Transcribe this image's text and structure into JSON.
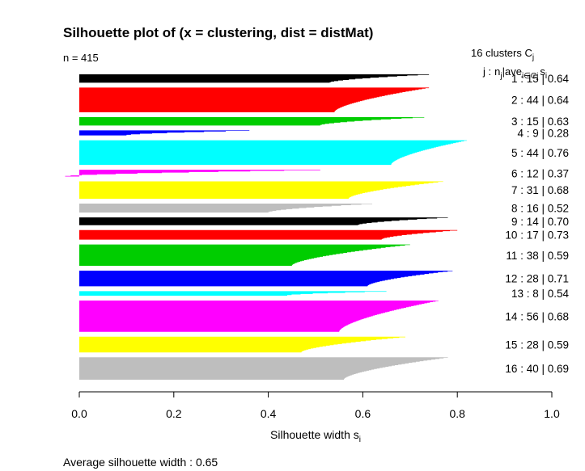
{
  "chart_data": {
    "type": "bar",
    "title": "Silhouette plot of (x = clustering, dist = distMat)",
    "n_label": "n = 415",
    "header": {
      "clusters_prefix": "16  clusters  C",
      "clusters_sub": "j",
      "col_j": "j :",
      "col_nj": "n",
      "col_nj_sub": "j",
      "col_sep": "|",
      "col_ave": "ave",
      "col_ave_sub": "i∈Cj",
      "col_s": "s",
      "col_s_sub": "i"
    },
    "xlabel_main": "Silhouette width s",
    "xlabel_sub": "i",
    "xlim": [
      0,
      1
    ],
    "x_ticks": [
      "0.0",
      "0.2",
      "0.4",
      "0.6",
      "0.8",
      "1.0"
    ],
    "x_tick_values": [
      0,
      0.2,
      0.4,
      0.6,
      0.8,
      1.0
    ],
    "footer_label": "Average silhouette width :  0.65",
    "bar_orientation": "horizontal",
    "grid": false,
    "clusters": [
      {
        "j": 1,
        "n": 15,
        "ave": "0.64",
        "color": "#000000",
        "max": 0.74,
        "min": 0.53,
        "label_text": "1 :  15  |  0.64"
      },
      {
        "j": 2,
        "n": 44,
        "ave": "0.64",
        "color": "#ff0000",
        "max": 0.74,
        "min": 0.54,
        "label_text": "2 :  44  |  0.64"
      },
      {
        "j": 3,
        "n": 15,
        "ave": "0.63",
        "color": "#00cd00",
        "max": 0.73,
        "min": 0.51,
        "label_text": "3 :  15  |  0.63"
      },
      {
        "j": 4,
        "n": 9,
        "ave": "0.28",
        "color": "#0000ff",
        "max": 0.36,
        "min": 0.1,
        "label_text": "4 :   9  |  0.28"
      },
      {
        "j": 5,
        "n": 44,
        "ave": "0.76",
        "color": "#00ffff",
        "max": 0.82,
        "min": 0.66,
        "label_text": "5 :  44  |  0.76"
      },
      {
        "j": 6,
        "n": 12,
        "ave": "0.37",
        "color": "#ff00ff",
        "max": 0.51,
        "min": -0.03,
        "label_text": "6 :  12  |  0.37"
      },
      {
        "j": 7,
        "n": 31,
        "ave": "0.68",
        "color": "#ffff00",
        "max": 0.77,
        "min": 0.57,
        "label_text": "7 :  31  |  0.68"
      },
      {
        "j": 8,
        "n": 16,
        "ave": "0.52",
        "color": "#bebebe",
        "max": 0.62,
        "min": 0.4,
        "label_text": "8 :  16  |  0.52"
      },
      {
        "j": 9,
        "n": 14,
        "ave": "0.70",
        "color": "#000000",
        "max": 0.78,
        "min": 0.59,
        "label_text": "9 :  14  |  0.70"
      },
      {
        "j": 10,
        "n": 17,
        "ave": "0.73",
        "color": "#ff0000",
        "max": 0.8,
        "min": 0.64,
        "label_text": "10 :  17  |  0.73"
      },
      {
        "j": 11,
        "n": 38,
        "ave": "0.59",
        "color": "#00cd00",
        "max": 0.7,
        "min": 0.45,
        "label_text": "11 :  38  |  0.59"
      },
      {
        "j": 12,
        "n": 28,
        "ave": "0.71",
        "color": "#0000ff",
        "max": 0.79,
        "min": 0.61,
        "label_text": "12 :  28  |  0.71"
      },
      {
        "j": 13,
        "n": 8,
        "ave": "0.54",
        "color": "#00ffff",
        "max": 0.65,
        "min": 0.44,
        "label_text": "13 :   8  |  0.54"
      },
      {
        "j": 14,
        "n": 56,
        "ave": "0.68",
        "color": "#ff00ff",
        "max": 0.76,
        "min": 0.55,
        "label_text": "14 :  56  |  0.68"
      },
      {
        "j": 15,
        "n": 28,
        "ave": "0.59",
        "color": "#ffff00",
        "max": 0.69,
        "min": 0.47,
        "label_text": "15 :  28  |  0.59"
      },
      {
        "j": 16,
        "n": 40,
        "ave": "0.69",
        "color": "#bebebe",
        "max": 0.78,
        "min": 0.56,
        "label_text": "16 :  40  |  0.69"
      }
    ]
  }
}
